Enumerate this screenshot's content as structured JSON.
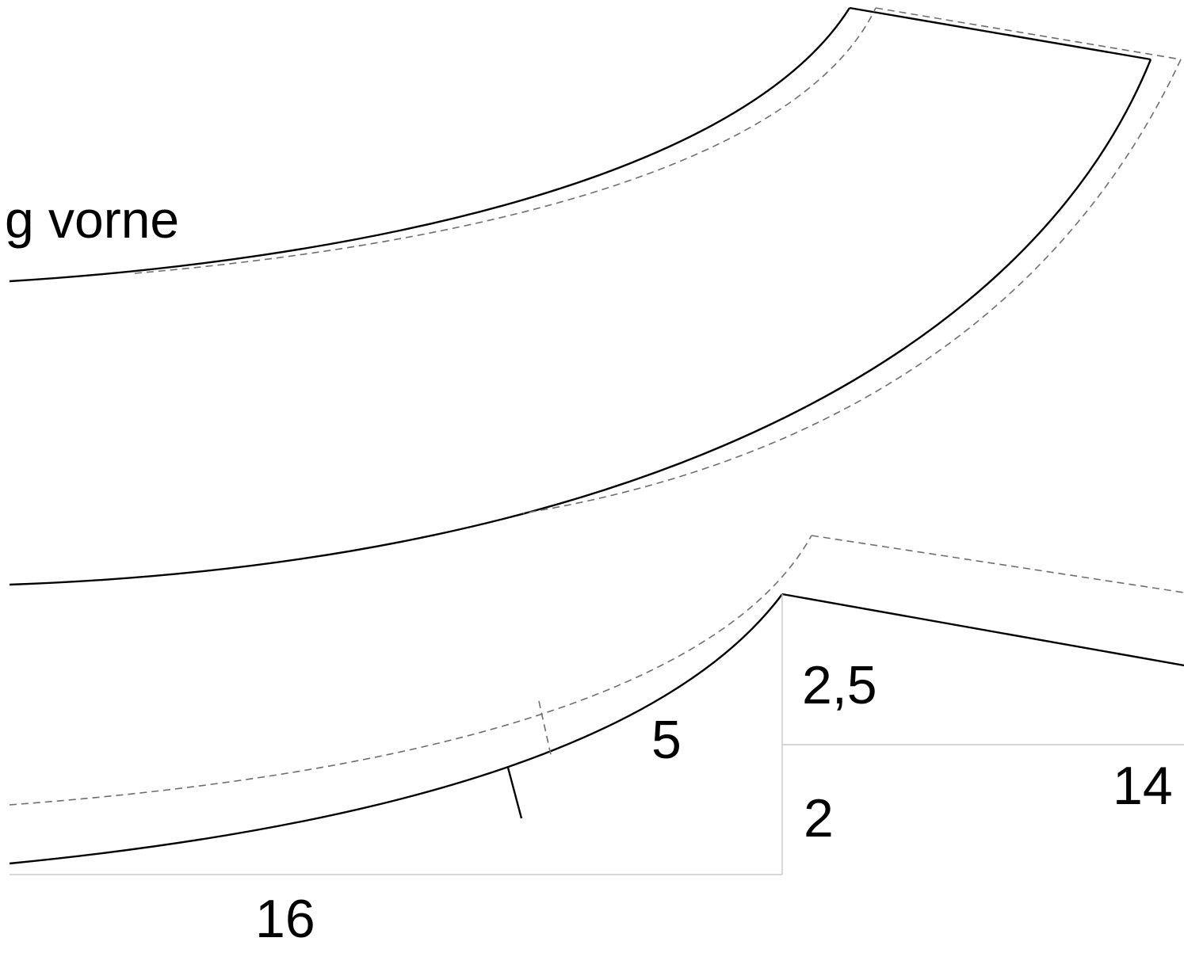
{
  "diagram": {
    "piece_label": "g vorne",
    "dimensions": {
      "d_2_5": "2,5",
      "d_5": "5",
      "d_2": "2",
      "d_14": "14",
      "d_16": "16"
    },
    "colors": {
      "cut_line": "#000000",
      "seam_allowance_dashed": "#6e6e6e",
      "guide_line": "#c8c8c8",
      "background": "#ffffff"
    }
  }
}
